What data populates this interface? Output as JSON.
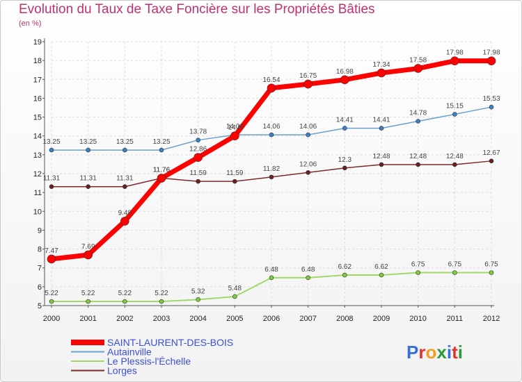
{
  "title": "Evolution du Taux de Taxe Foncière sur les Propriétés Bâties",
  "subtitle": "(en %)",
  "logo": "Proxiti",
  "chart_data": {
    "type": "line",
    "x": [
      2000,
      2001,
      2002,
      2003,
      2004,
      2005,
      2006,
      2007,
      2008,
      2009,
      2010,
      2011,
      2012
    ],
    "ylim": [
      5,
      19
    ],
    "yticks": [
      5,
      6,
      7,
      8,
      9,
      10,
      11,
      12,
      13,
      14,
      15,
      16,
      17,
      18,
      19
    ],
    "series": [
      {
        "name": "Le Plessis-l'Échelle",
        "color": "#a2d86a",
        "point_color": "#7fcc3a",
        "width": 2,
        "r": 3,
        "values": [
          5.22,
          5.22,
          5.22,
          5.22,
          5.32,
          5.48,
          6.48,
          6.48,
          6.62,
          6.62,
          6.75,
          6.75,
          6.75
        ]
      },
      {
        "name": "Lorges",
        "color": "#7a2a2a",
        "point_color": "#6b1f1f",
        "width": 1.5,
        "r": 3,
        "values": [
          11.31,
          11.31,
          11.31,
          11.76,
          11.59,
          11.59,
          11.82,
          12.06,
          12.3,
          12.48,
          12.48,
          12.48,
          12.67
        ]
      },
      {
        "name": "Autainville",
        "color": "#6aa0d0",
        "point_color": "#3b7fc4",
        "width": 1.5,
        "r": 3,
        "values": [
          13.25,
          13.25,
          13.25,
          13.25,
          13.78,
          14.06,
          14.06,
          14.06,
          14.41,
          14.41,
          14.78,
          15.15,
          15.53
        ]
      },
      {
        "name": "SAINT-LAURENT-DES-BOIS",
        "color": "#ff0000",
        "point_color": "#ff0000",
        "width": 7,
        "r": 6,
        "values": [
          7.47,
          7.69,
          9.48,
          11.76,
          12.86,
          14.0,
          16.54,
          16.75,
          16.98,
          17.34,
          17.58,
          17.98,
          17.98
        ]
      }
    ],
    "data_labels": {
      "SAINT-LAURENT-DES-BOIS": [
        "7.47",
        "7.69",
        "9.48",
        "11.76",
        "12.86",
        "14.0",
        "16.54",
        "16.75",
        "16.98",
        "17.34",
        "17.58",
        "17.98",
        "17.98"
      ],
      "Autainville": [
        "13.25",
        "13.25",
        "13.25",
        "13.25",
        "13.78",
        "14.06",
        "14.06",
        "14.06",
        "14.41",
        "14.41",
        "14.78",
        "15.15",
        "15.53"
      ],
      "Lorges": [
        "11.31",
        "11.31",
        "11.31",
        "11.76",
        "11.59",
        "11.59",
        "11.82",
        "12.06",
        "12.3",
        "12.48",
        "12.48",
        "12.48",
        "12.67"
      ],
      "Le Plessis-l'Échelle": [
        "5.22",
        "5.22",
        "5.22",
        "5.22",
        "5.32",
        "5.48",
        "6.48",
        "6.48",
        "6.62",
        "6.62",
        "6.75",
        "6.75",
        "6.75"
      ]
    },
    "legend": [
      {
        "name": "SAINT-LAURENT-DES-BOIS",
        "color": "#ff0000",
        "width": 8
      },
      {
        "name": "Autainville",
        "color": "#6aa0d0",
        "width": 2
      },
      {
        "name": "Le Plessis-l'Échelle",
        "color": "#a2d86a",
        "width": 2
      },
      {
        "name": "Lorges",
        "color": "#7a2a2a",
        "width": 2
      }
    ]
  }
}
